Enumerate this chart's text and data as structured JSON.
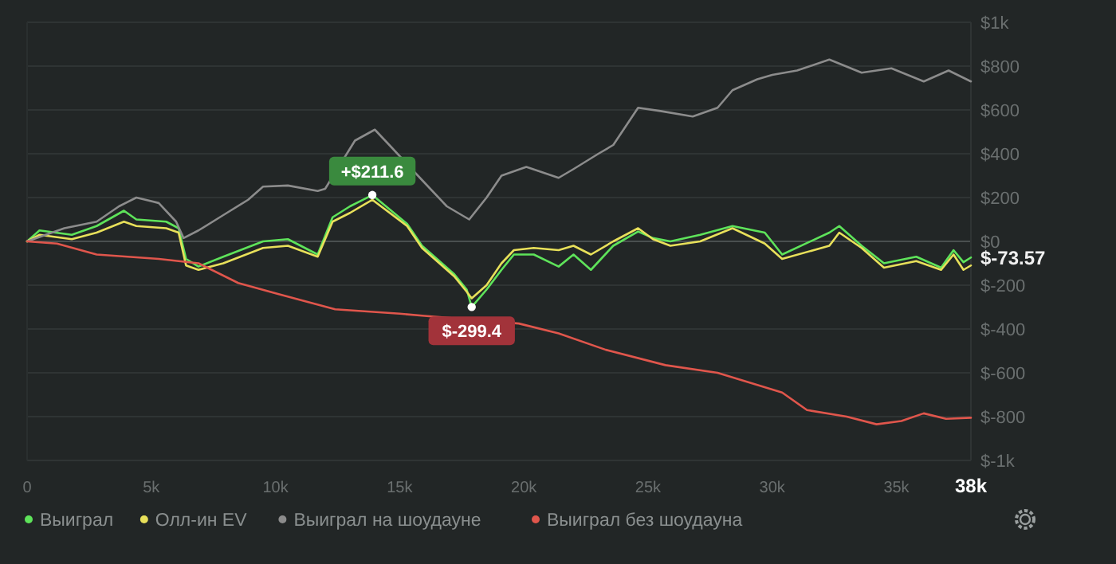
{
  "chart_data": {
    "type": "line",
    "xlim": [
      0,
      38000
    ],
    "xticks": [
      0,
      {
        "value": 5000,
        "label": "5k"
      },
      {
        "value": 10000,
        "label": "10k"
      },
      {
        "value": 15000,
        "label": "15k"
      },
      {
        "value": 20000,
        "label": "20k"
      },
      {
        "value": 25000,
        "label": "25k"
      },
      {
        "value": 30000,
        "label": "30k"
      },
      {
        "value": 35000,
        "label": "35k"
      },
      {
        "value": 38000,
        "label": "38k"
      }
    ],
    "ylim": [
      -1000,
      1000
    ],
    "yticks": [
      {
        "value": 1000,
        "label": "$1k"
      },
      {
        "value": 800,
        "label": "$800"
      },
      {
        "value": 600,
        "label": "$600"
      },
      {
        "value": 400,
        "label": "$400"
      },
      {
        "value": 200,
        "label": "$200"
      },
      {
        "value": 0,
        "label": "$0"
      },
      {
        "value": -200,
        "label": "$-200"
      },
      {
        "value": -400,
        "label": "$-400"
      },
      {
        "value": -600,
        "label": "$-600"
      },
      {
        "value": -800,
        "label": "$-800"
      },
      {
        "value": -1000,
        "label": "$-1k"
      }
    ],
    "grid": "y",
    "legend": "bottom",
    "marker": "none",
    "line_style": "solid",
    "annotations": [
      {
        "text": "+$211.6",
        "x": 13900,
        "y": 211.6
      },
      {
        "text": "$-299.4",
        "x": 17900,
        "y": -299.4
      },
      {
        "text": "$-73.57",
        "x": 38000,
        "y": -73.57
      }
    ],
    "series": [
      {
        "name": "Выиграл",
        "color": "#5ee35a",
        "x": [
          0,
          500,
          1800,
          2800,
          3900,
          4400,
          5600,
          6100,
          6400,
          6900,
          7900,
          9500,
          10500,
          11700,
          12300,
          13000,
          13900,
          15300,
          15900,
          17200,
          17700,
          17900,
          18500,
          19100,
          19600,
          20400,
          21400,
          22000,
          22700,
          23600,
          24600,
          25200,
          25900,
          27100,
          28400,
          29700,
          30400,
          32300,
          32700,
          33600,
          34500,
          35800,
          36800,
          37300,
          37700,
          38000
        ],
        "values": [
          0,
          50,
          30,
          70,
          140,
          100,
          90,
          60,
          -80,
          -115,
          -70,
          0,
          10,
          -60,
          110,
          160,
          211.6,
          80,
          -20,
          -150,
          -220,
          -299.4,
          -220,
          -130,
          -60,
          -60,
          -115,
          -60,
          -130,
          -20,
          45,
          15,
          0,
          30,
          70,
          40,
          -60,
          40,
          70,
          -20,
          -100,
          -70,
          -120,
          -40,
          -95,
          -73.57
        ]
      },
      {
        "name": "Олл-ин EV",
        "color": "#e8e05a",
        "x": [
          0,
          500,
          1800,
          2800,
          3900,
          4400,
          5600,
          6100,
          6400,
          6900,
          7900,
          9500,
          10500,
          11700,
          12300,
          13000,
          13900,
          15300,
          15900,
          17200,
          17700,
          17900,
          18500,
          19100,
          19600,
          20400,
          21400,
          22000,
          22700,
          23600,
          24600,
          25200,
          25900,
          27100,
          28400,
          29700,
          30400,
          32300,
          32700,
          33600,
          34500,
          35800,
          36800,
          37300,
          37700,
          38000
        ],
        "values": [
          0,
          30,
          10,
          40,
          90,
          70,
          60,
          40,
          -110,
          -130,
          -100,
          -30,
          -20,
          -70,
          90,
          130,
          190,
          70,
          -30,
          -160,
          -230,
          -260,
          -200,
          -100,
          -40,
          -30,
          -40,
          -20,
          -60,
          0,
          60,
          10,
          -20,
          0,
          60,
          -10,
          -80,
          -20,
          40,
          -30,
          -120,
          -90,
          -130,
          -60,
          -130,
          -110
        ]
      },
      {
        "name": "Выиграл на шоудауне",
        "color": "#8c8c8c",
        "x": [
          0,
          1500,
          2800,
          3700,
          4400,
          5300,
          6000,
          6300,
          6900,
          7900,
          8900,
          9500,
          10500,
          11700,
          12000,
          13200,
          14000,
          14500,
          15900,
          16900,
          17800,
          18500,
          19100,
          20100,
          21400,
          22000,
          23000,
          23600,
          24600,
          25500,
          26800,
          27800,
          28400,
          29400,
          30000,
          31000,
          32300,
          33600,
          34800,
          36100,
          37100,
          38000
        ],
        "values": [
          0,
          60,
          90,
          160,
          200,
          175,
          90,
          15,
          50,
          120,
          190,
          250,
          255,
          230,
          240,
          460,
          510,
          450,
          280,
          160,
          100,
          200,
          300,
          340,
          290,
          330,
          400,
          440,
          610,
          595,
          570,
          610,
          690,
          740,
          760,
          780,
          830,
          770,
          790,
          730,
          780,
          730
        ]
      },
      {
        "name": "Выиграл без шоудауна",
        "color": "#e0564c",
        "x": [
          0,
          1200,
          2800,
          5300,
          6900,
          8500,
          10100,
          12400,
          15000,
          16000,
          19800,
          21400,
          23300,
          25700,
          27800,
          30400,
          31400,
          33000,
          34200,
          35200,
          36100,
          37000,
          38000
        ],
        "values": [
          0,
          -10,
          -60,
          -80,
          -100,
          -190,
          -240,
          -310,
          -330,
          -340,
          -375,
          -420,
          -495,
          -565,
          -600,
          -690,
          -770,
          -800,
          -835,
          -820,
          -785,
          -810,
          -805
        ]
      }
    ]
  }
}
